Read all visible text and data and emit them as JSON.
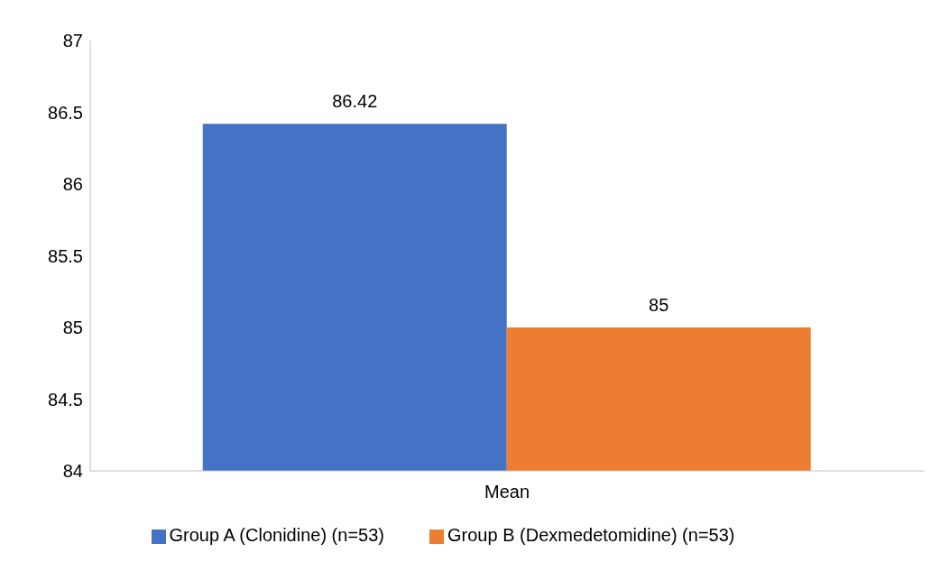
{
  "chart_data": {
    "type": "bar",
    "categories": [
      "Mean"
    ],
    "series": [
      {
        "name": "Group A (Clonidine) (n=53)",
        "color": "#4472c4",
        "values": [
          86.42
        ]
      },
      {
        "name": "Group B (Dexmedetomidine) (n=53)",
        "color": "#ed7d31",
        "values": [
          85
        ]
      }
    ],
    "ylim": [
      84,
      87
    ],
    "yticks": [
      84,
      84.5,
      85,
      85.5,
      86,
      86.5,
      87
    ],
    "grid": false,
    "legend": "bottom",
    "data_labels": true
  }
}
